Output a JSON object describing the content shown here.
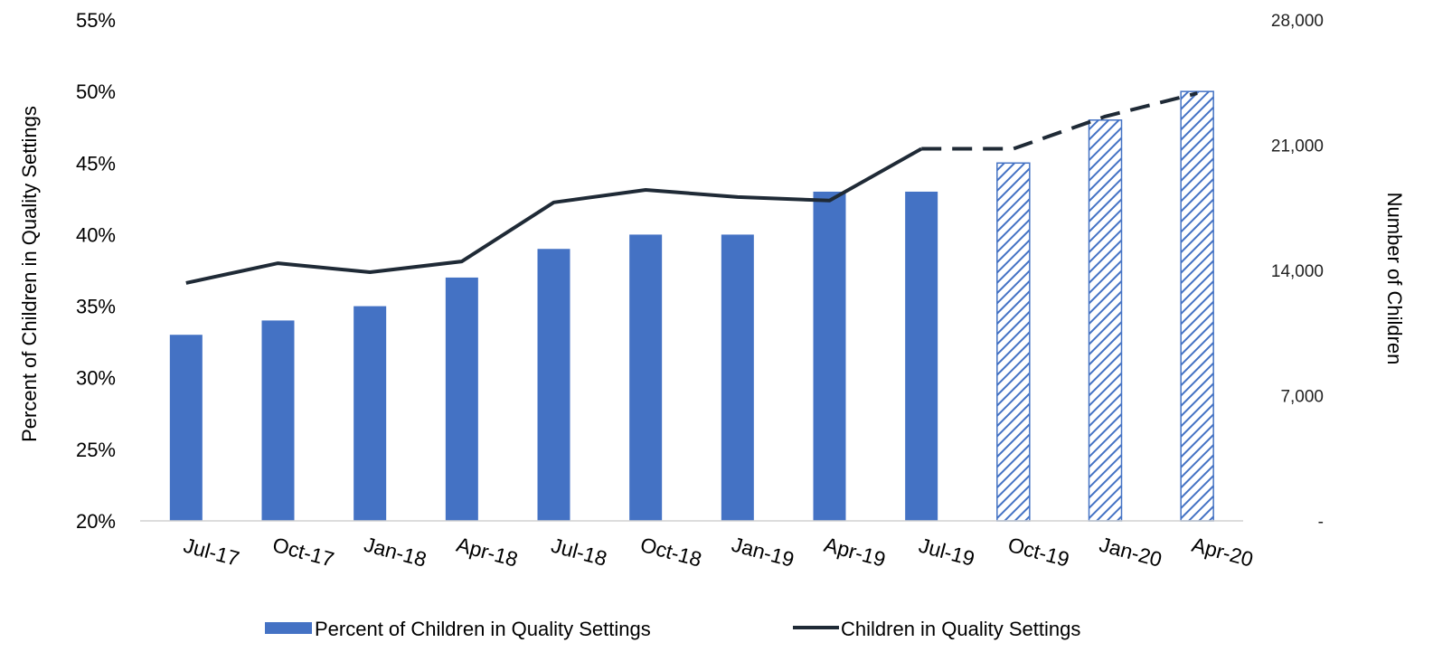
{
  "chart_data": {
    "type": "bar",
    "categories": [
      "Jul-17",
      "Oct-17",
      "Jan-18",
      "Apr-18",
      "Jul-18",
      "Oct-18",
      "Jan-19",
      "Apr-19",
      "Jul-19",
      "Oct-19",
      "Jan-20",
      "Apr-20"
    ],
    "series": [
      {
        "name": "Percent of Children in Quality Settings",
        "type": "bar",
        "axis": "left",
        "values": [
          0.33,
          0.34,
          0.35,
          0.37,
          0.39,
          0.4,
          0.4,
          0.43,
          0.43,
          0.45,
          0.48,
          0.5
        ],
        "projected": [
          false,
          false,
          false,
          false,
          false,
          false,
          false,
          false,
          false,
          true,
          true,
          true
        ],
        "color": "#4472C4"
      },
      {
        "name": "Children in Quality Settings",
        "type": "line",
        "axis": "right",
        "values": [
          13300,
          14400,
          13900,
          14500,
          17800,
          18500,
          18100,
          17900,
          20800,
          20800,
          22600,
          23900
        ],
        "projected": [
          false,
          false,
          false,
          false,
          false,
          false,
          false,
          false,
          false,
          true,
          true,
          true
        ],
        "color": "#1F2A36"
      }
    ],
    "y_left": {
      "label": "Percent of Children in Quality Settings",
      "range": [
        0.2,
        0.55
      ],
      "ticks": [
        "20%",
        "25%",
        "30%",
        "35%",
        "40%",
        "45%",
        "50%",
        "55%"
      ]
    },
    "y_right": {
      "label": "Number of Children",
      "range": [
        0,
        28000
      ],
      "ticks": [
        "-",
        "7,000",
        "14,000",
        "21,000",
        "28,000"
      ]
    },
    "legend": {
      "position": "bottom",
      "items": [
        "Percent of Children in Quality Settings",
        "Children in Quality Settings"
      ]
    },
    "grid": false
  }
}
